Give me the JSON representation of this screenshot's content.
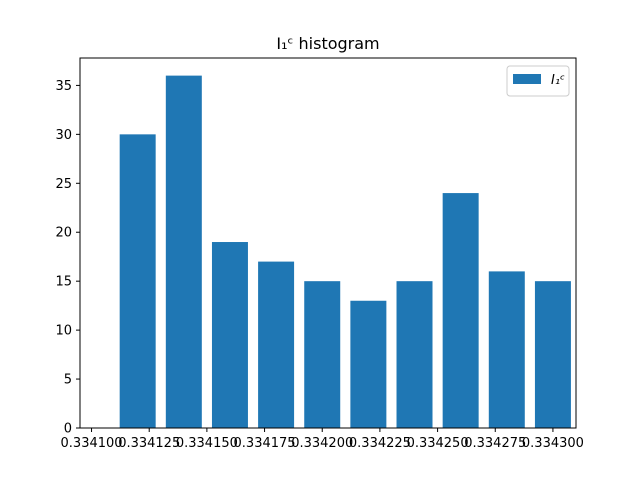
{
  "chart_data": {
    "type": "bar",
    "title": "I₁ᶜ histogram",
    "xlabel": "",
    "ylabel": "",
    "x": [
      0.33412,
      0.33414,
      0.33416,
      0.33418,
      0.3342,
      0.33422,
      0.33424,
      0.33426,
      0.33428,
      0.3343
    ],
    "values": [
      30,
      36,
      19,
      17,
      15,
      13,
      15,
      24,
      16,
      15
    ],
    "bar_width": 1.56e-05,
    "xlim": [
      0.334095,
      0.33431
    ],
    "ylim": [
      0,
      37.8
    ],
    "xticks": [
      0.3341,
      0.334125,
      0.33415,
      0.334175,
      0.3342,
      0.334225,
      0.33425,
      0.334275,
      0.3343
    ],
    "xtick_labels": [
      "0.334100",
      "0.334125",
      "0.334150",
      "0.334175",
      "0.334200",
      "0.334225",
      "0.334250",
      "0.334275",
      "0.334300"
    ],
    "yticks": [
      0,
      5,
      10,
      15,
      20,
      25,
      30,
      35
    ],
    "ytick_labels": [
      "0",
      "5",
      "10",
      "15",
      "20",
      "25",
      "30",
      "35"
    ],
    "legend": {
      "label": "I₁ᶜ",
      "placement": "top-right"
    },
    "grid": false,
    "color": "#1f77b4"
  }
}
